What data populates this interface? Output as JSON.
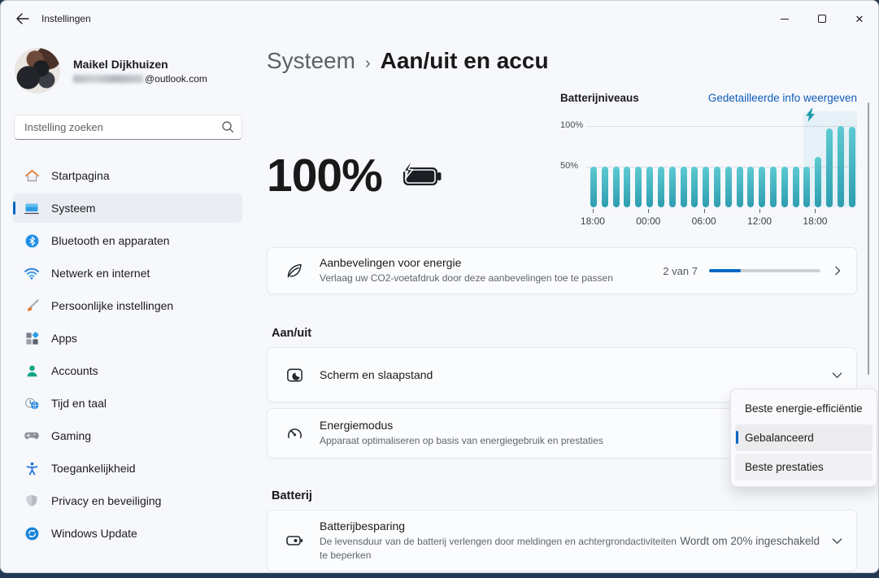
{
  "window": {
    "title": "Instellingen"
  },
  "sidebar": {
    "user": {
      "name": "Maikel Dijkhuizen",
      "email_domain": "@outlook.com"
    },
    "search": {
      "placeholder": "Instelling zoeken"
    },
    "items": [
      {
        "label": "Startpagina",
        "selected": false
      },
      {
        "label": "Systeem",
        "selected": true
      },
      {
        "label": "Bluetooth en apparaten",
        "selected": false
      },
      {
        "label": "Netwerk en internet",
        "selected": false
      },
      {
        "label": "Persoonlijke instellingen",
        "selected": false
      },
      {
        "label": "Apps",
        "selected": false
      },
      {
        "label": "Accounts",
        "selected": false
      },
      {
        "label": "Tijd en taal",
        "selected": false
      },
      {
        "label": "Gaming",
        "selected": false
      },
      {
        "label": "Toegankelijkheid",
        "selected": false
      },
      {
        "label": "Privacy en beveiliging",
        "selected": false
      },
      {
        "label": "Windows Update",
        "selected": false
      }
    ]
  },
  "main": {
    "breadcrumb": {
      "parent": "Systeem",
      "separator": "›",
      "current": "Aan/uit en accu"
    },
    "hero": {
      "percent": "100%"
    },
    "recommendations": {
      "title": "Aanbevelingen voor energie",
      "subtitle": "Verlaag uw CO2-voetafdruk door deze aanbevelingen toe te passen",
      "progress_label": "2 van 7",
      "progress_value": 2,
      "progress_max": 7
    },
    "power_section": {
      "header": "Aan/uit",
      "screen_sleep": {
        "title": "Scherm en slaapstand"
      },
      "energy_mode": {
        "title": "Energiemodus",
        "subtitle": "Apparaat optimaliseren op basis van energiegebruik en prestaties"
      }
    },
    "energy_mode_menu": {
      "items": [
        {
          "label": "Beste energie-efficiëntie",
          "selected": false
        },
        {
          "label": "Gebalanceerd",
          "selected": true
        },
        {
          "label": "Beste prestaties",
          "selected": false
        }
      ]
    },
    "battery_section": {
      "header": "Batterij",
      "battery_saver": {
        "title": "Batterijbesparing",
        "subtitle": "De levensduur van de batterij verlengen door meldingen en achtergrondactiviteiten te beperken",
        "value": "Wordt om 20% ingeschakeld"
      }
    }
  },
  "chart_data": {
    "type": "bar",
    "title": "Batterijniveaus",
    "link": "Gedetailleerde info weergeven",
    "ylabel": "",
    "xlabel": "",
    "ylim": [
      0,
      100
    ],
    "y_ticks": [
      "100%",
      "50%"
    ],
    "x_ticks": [
      "18:00",
      "00:00",
      "06:00",
      "12:00",
      "18:00"
    ],
    "values": [
      50,
      50,
      50,
      50,
      50,
      50,
      50,
      50,
      50,
      50,
      50,
      50,
      50,
      50,
      50,
      50,
      50,
      50,
      50,
      50,
      62,
      97,
      100,
      99
    ],
    "charging_region": {
      "start_index": 20,
      "end_index": 23
    }
  },
  "colors": {
    "accent": "#0067c4",
    "link": "#0f5cb8",
    "bar_top": "#5ecbd3",
    "bar_bottom": "#2d9cae",
    "bolt": "#1b9aad"
  }
}
